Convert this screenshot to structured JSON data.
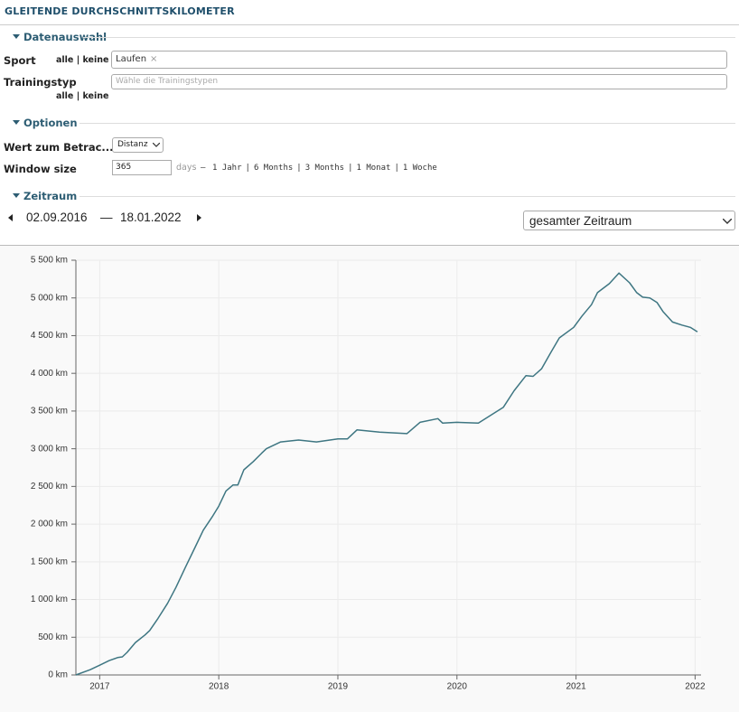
{
  "header": {
    "title": "GLEITENDE DURCHSCHNITTSKILOMETER"
  },
  "datenauswahl": {
    "title": "Datenauswahl",
    "sport_label": "Sport",
    "sport_links": [
      "alle",
      "keine"
    ],
    "sport_value": "Laufen",
    "remove": "×",
    "trainingstyp_label": "Trainingstyp",
    "trainingstyp_placeholder": "Wähle die Trainingstypen",
    "trainingstyp_links": [
      "alle",
      "keine"
    ],
    "link_separator": "|"
  },
  "optionen": {
    "title": "Optionen",
    "wert_label": "Wert zum Betrac...",
    "wert_value": "Distanz",
    "window_label": "Window size",
    "window_value": "365",
    "window_unit": "days",
    "dash": "–",
    "presets": [
      "1 Jahr",
      "6 Months",
      "3 Months",
      "1 Monat",
      "1 Woche"
    ]
  },
  "zeitraum": {
    "title": "Zeitraum",
    "from": "02.09.2016",
    "dash": "—",
    "to": "18.01.2022",
    "range": "gesamter Zeitraum"
  },
  "chart_data": {
    "type": "line",
    "x": [
      2016.8,
      2016.92,
      2017.0,
      2017.08,
      2017.15,
      2017.19,
      2017.23,
      2017.3,
      2017.38,
      2017.42,
      2017.49,
      2017.57,
      2017.64,
      2017.72,
      2017.8,
      2017.87,
      2017.95,
      2018.0,
      2018.06,
      2018.12,
      2018.16,
      2018.21,
      2018.29,
      2018.36,
      2018.4,
      2018.52,
      2018.67,
      2018.82,
      2019.0,
      2019.08,
      2019.16,
      2019.35,
      2019.58,
      2019.69,
      2019.84,
      2019.88,
      2020.0,
      2020.18,
      2020.3,
      2020.39,
      2020.48,
      2020.58,
      2020.64,
      2020.71,
      2020.79,
      2020.86,
      2020.98,
      2021.05,
      2021.13,
      2021.18,
      2021.28,
      2021.36,
      2021.45,
      2021.51,
      2021.56,
      2021.62,
      2021.68,
      2021.73,
      2021.81,
      2021.89,
      2021.96,
      2022.02
    ],
    "series": [
      {
        "color": "#3e7682",
        "values": [
          0,
          70,
          130,
          190,
          230,
          240,
          300,
          430,
          530,
          590,
          750,
          950,
          1160,
          1430,
          1690,
          1920,
          2110,
          2240,
          2440,
          2520,
          2520,
          2720,
          2830,
          2940,
          3000,
          3090,
          3115,
          3090,
          3130,
          3130,
          3250,
          3220,
          3200,
          3350,
          3400,
          3340,
          3350,
          3340,
          3460,
          3550,
          3770,
          3970,
          3960,
          4060,
          4280,
          4470,
          4610,
          4760,
          4910,
          5070,
          5190,
          5330,
          5200,
          5070,
          5010,
          5000,
          4940,
          4820,
          4680,
          4640,
          4610,
          4550
        ]
      }
    ],
    "xlim": [
      2016.8,
      2022.05
    ],
    "xticks": [
      2017,
      2018,
      2019,
      2020,
      2021,
      2022
    ],
    "ylim": [
      0,
      5500
    ],
    "yticks": [
      {
        "value": 0,
        "label": "0 km"
      },
      {
        "value": 500,
        "label": "500 km"
      },
      {
        "value": 1000,
        "label": "1 000 km"
      },
      {
        "value": 1500,
        "label": "1 500 km"
      },
      {
        "value": 2000,
        "label": "2 000 km"
      },
      {
        "value": 2500,
        "label": "2 500 km"
      },
      {
        "value": 3000,
        "label": "3 000 km"
      },
      {
        "value": 3500,
        "label": "3 500 km"
      },
      {
        "value": 4000,
        "label": "4 000 km"
      },
      {
        "value": 4500,
        "label": "4 500 km"
      },
      {
        "value": 5000,
        "label": "5 000 km"
      },
      {
        "value": 5500,
        "label": "5 500 km"
      }
    ],
    "grid": true
  }
}
